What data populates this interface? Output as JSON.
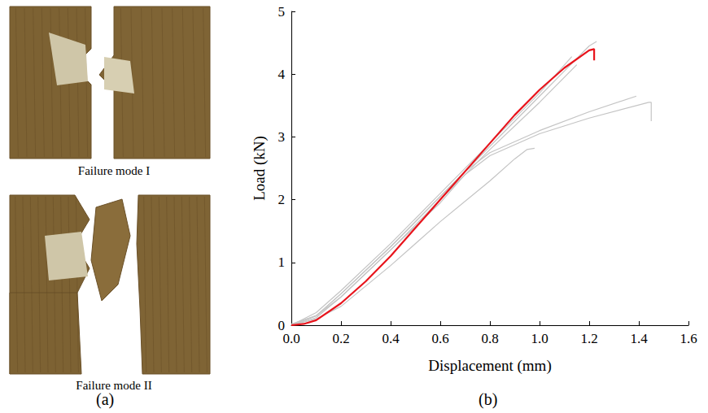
{
  "photos": {
    "label": "(a)",
    "captions": [
      "Failure mode I",
      "Failure mode II"
    ]
  },
  "chart_data": {
    "label": "(b)",
    "type": "line",
    "xlabel": "Displacement (mm)",
    "ylabel": "Load (kN)",
    "xlim": [
      0,
      1.6
    ],
    "xticks": [
      {
        "value": 0,
        "label": "0.0"
      },
      0.2,
      0.4,
      0.6,
      0.8,
      {
        "value": 1,
        "label": "1.0"
      },
      1.2,
      1.4,
      1.6
    ],
    "ylim": [
      0,
      5
    ],
    "yticks": [
      0,
      1,
      2,
      3,
      4,
      5
    ],
    "grid": false,
    "series": [
      {
        "color": "#c4c4c4",
        "x": [
          0,
          0.1,
          0.2,
          0.4,
          0.6,
          0.8,
          1.0,
          1.1,
          1.2,
          1.23
        ],
        "values": [
          0,
          0.15,
          0.5,
          1.25,
          2.05,
          2.85,
          3.65,
          4.05,
          4.45,
          4.52
        ]
      },
      {
        "color": "#c4c4c4",
        "x": [
          0,
          0.1,
          0.2,
          0.4,
          0.6,
          0.8,
          1.0,
          1.13
        ],
        "values": [
          0,
          0.2,
          0.55,
          1.3,
          2.1,
          2.9,
          3.7,
          4.28
        ]
      },
      {
        "color": "#c4c4c4",
        "x": [
          0,
          0.1,
          0.2,
          0.4,
          0.6,
          0.8,
          1.0,
          1.15
        ],
        "values": [
          0.02,
          0.15,
          0.45,
          1.2,
          2.0,
          2.8,
          3.55,
          4.15
        ]
      },
      {
        "color": "#c4c4c4",
        "x": [
          0,
          0.1,
          0.2,
          0.4,
          0.6,
          0.7,
          0.8,
          1.0,
          1.2,
          1.39
        ],
        "values": [
          0,
          0.15,
          0.5,
          1.25,
          2.05,
          2.45,
          2.75,
          3.1,
          3.4,
          3.65
        ]
      },
      {
        "color": "#c4c4c4",
        "x": [
          0,
          0.1,
          0.2,
          0.4,
          0.6,
          0.7,
          0.8,
          1.0,
          1.2,
          1.44,
          1.45,
          1.45
        ],
        "values": [
          0,
          0.12,
          0.45,
          1.2,
          1.95,
          2.4,
          2.7,
          3.05,
          3.3,
          3.55,
          3.55,
          3.25
        ]
      },
      {
        "color": "#c4c4c4",
        "x": [
          0,
          0.1,
          0.2,
          0.4,
          0.6,
          0.8,
          0.9,
          0.95,
          0.98
        ],
        "values": [
          0,
          0.1,
          0.3,
          0.95,
          1.65,
          2.3,
          2.65,
          2.8,
          2.82
        ]
      },
      {
        "color": "#e8141c",
        "x": [
          0,
          0.05,
          0.1,
          0.2,
          0.3,
          0.4,
          0.5,
          0.6,
          0.7,
          0.8,
          0.9,
          1.0,
          1.1,
          1.2,
          1.22,
          1.22
        ],
        "values": [
          0,
          0.02,
          0.08,
          0.35,
          0.7,
          1.1,
          1.55,
          2.0,
          2.45,
          2.9,
          3.35,
          3.75,
          4.1,
          4.38,
          4.4,
          4.22
        ]
      }
    ]
  }
}
